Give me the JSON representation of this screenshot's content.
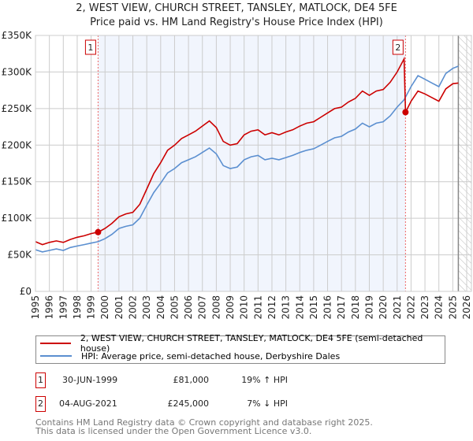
{
  "chart_data": {
    "type": "line",
    "title": "2, WEST VIEW, CHURCH STREET, TANSLEY, MATLOCK, DE4 5FE",
    "subtitle": "Price paid vs. HM Land Registry's House Price Index (HPI)",
    "xlim": [
      1995,
      2026
    ],
    "ylim": [
      0,
      350000
    ],
    "x_ticks": [
      "1995",
      "1996",
      "1997",
      "1998",
      "1999",
      "2000",
      "2001",
      "2002",
      "2003",
      "2004",
      "2005",
      "2006",
      "2007",
      "2008",
      "2009",
      "2010",
      "2011",
      "2012",
      "2013",
      "2014",
      "2015",
      "2016",
      "2017",
      "2018",
      "2019",
      "2020",
      "2021",
      "2022",
      "2023",
      "2024",
      "2025",
      "2026"
    ],
    "y_ticks": [
      {
        "v": 0,
        "label": "£0"
      },
      {
        "v": 50000,
        "label": "£50K"
      },
      {
        "v": 100000,
        "label": "£100K"
      },
      {
        "v": 150000,
        "label": "£150K"
      },
      {
        "v": 200000,
        "label": "£200K"
      },
      {
        "v": 250000,
        "label": "£250K"
      },
      {
        "v": 300000,
        "label": "£300K"
      },
      {
        "v": 350000,
        "label": "£350K"
      }
    ],
    "grid": true,
    "shaded_range": [
      1999.5,
      2021.6
    ],
    "data_end": 2025.4,
    "series": [
      {
        "name": "2, WEST VIEW, CHURCH STREET, TANSLEY, MATLOCK, DE4 5FE (semi-detached house)",
        "color": "#cc0000",
        "x": [
          1995,
          1995.5,
          1996,
          1996.5,
          1997,
          1997.5,
          1998,
          1998.5,
          1999,
          1999.5,
          2000,
          2000.5,
          2001,
          2001.5,
          2002,
          2002.5,
          2003,
          2003.5,
          2004,
          2004.5,
          2005,
          2005.5,
          2006,
          2006.5,
          2007,
          2007.5,
          2008,
          2008.5,
          2009,
          2009.5,
          2010,
          2010.5,
          2011,
          2011.5,
          2012,
          2012.5,
          2013,
          2013.5,
          2014,
          2014.5,
          2015,
          2015.5,
          2016,
          2016.5,
          2017,
          2017.5,
          2018,
          2018.5,
          2019,
          2019.5,
          2020,
          2020.5,
          2021,
          2021.5,
          2021.6,
          2022,
          2022.5,
          2023,
          2023.5,
          2024,
          2024.5,
          2025,
          2025.4
        ],
        "values": [
          68000,
          64000,
          67000,
          69000,
          67000,
          71000,
          74000,
          76000,
          79000,
          81000,
          86000,
          93000,
          102000,
          106000,
          108000,
          119000,
          140000,
          161000,
          176000,
          193000,
          200000,
          209000,
          214000,
          219000,
          226000,
          233000,
          224000,
          205000,
          200000,
          202000,
          214000,
          219000,
          221000,
          214000,
          217000,
          214000,
          218000,
          221000,
          226000,
          230000,
          232000,
          238000,
          244000,
          250000,
          252000,
          259000,
          264000,
          274000,
          268000,
          274000,
          276000,
          286000,
          300000,
          318000,
          245000,
          260000,
          274000,
          270000,
          265000,
          260000,
          277000,
          284000,
          285000
        ]
      },
      {
        "name": "HPI: Average price, semi-detached house, Derbyshire Dales",
        "color": "#5b8fd0",
        "x": [
          1995,
          1995.5,
          1996,
          1996.5,
          1997,
          1997.5,
          1998,
          1998.5,
          1999,
          1999.5,
          2000,
          2000.5,
          2001,
          2001.5,
          2002,
          2002.5,
          2003,
          2003.5,
          2004,
          2004.5,
          2005,
          2005.5,
          2006,
          2006.5,
          2007,
          2007.5,
          2008,
          2008.5,
          2009,
          2009.5,
          2010,
          2010.5,
          2011,
          2011.5,
          2012,
          2012.5,
          2013,
          2013.5,
          2014,
          2014.5,
          2015,
          2015.5,
          2016,
          2016.5,
          2017,
          2017.5,
          2018,
          2018.5,
          2019,
          2019.5,
          2020,
          2020.5,
          2021,
          2021.5,
          2022,
          2022.5,
          2023,
          2023.5,
          2024,
          2024.5,
          2025,
          2025.4
        ],
        "values": [
          57000,
          54000,
          56000,
          58000,
          56000,
          60000,
          62000,
          64000,
          66000,
          68000,
          72000,
          78000,
          86000,
          89000,
          91000,
          100000,
          118000,
          135000,
          148000,
          162000,
          168000,
          176000,
          180000,
          184000,
          190000,
          196000,
          188000,
          172000,
          168000,
          170000,
          180000,
          184000,
          186000,
          180000,
          182000,
          180000,
          183000,
          186000,
          190000,
          193000,
          195000,
          200000,
          205000,
          210000,
          212000,
          218000,
          222000,
          230000,
          225000,
          230000,
          232000,
          240000,
          252000,
          262000,
          280000,
          295000,
          290000,
          285000,
          280000,
          298000,
          305000,
          308000
        ]
      }
    ],
    "annotations": [
      {
        "label": "1",
        "x": 1999.5,
        "y": 81000
      },
      {
        "label": "2",
        "x": 2021.6,
        "y": 245000
      }
    ]
  },
  "legend": {
    "property": "2, WEST VIEW, CHURCH STREET, TANSLEY, MATLOCK, DE4 5FE (semi-detached house)",
    "hpi": "HPI: Average price, semi-detached house, Derbyshire Dales"
  },
  "sales": [
    {
      "num": "1",
      "date": "30-JUN-1999",
      "price": "£81,000",
      "hpi": "19% ↑ HPI"
    },
    {
      "num": "2",
      "date": "04-AUG-2021",
      "price": "£245,000",
      "hpi": "7% ↓ HPI"
    }
  ],
  "footer": {
    "line1": "Contains HM Land Registry data © Crown copyright and database right 2025.",
    "line2": "This data is licensed under the Open Government Licence v3.0."
  }
}
